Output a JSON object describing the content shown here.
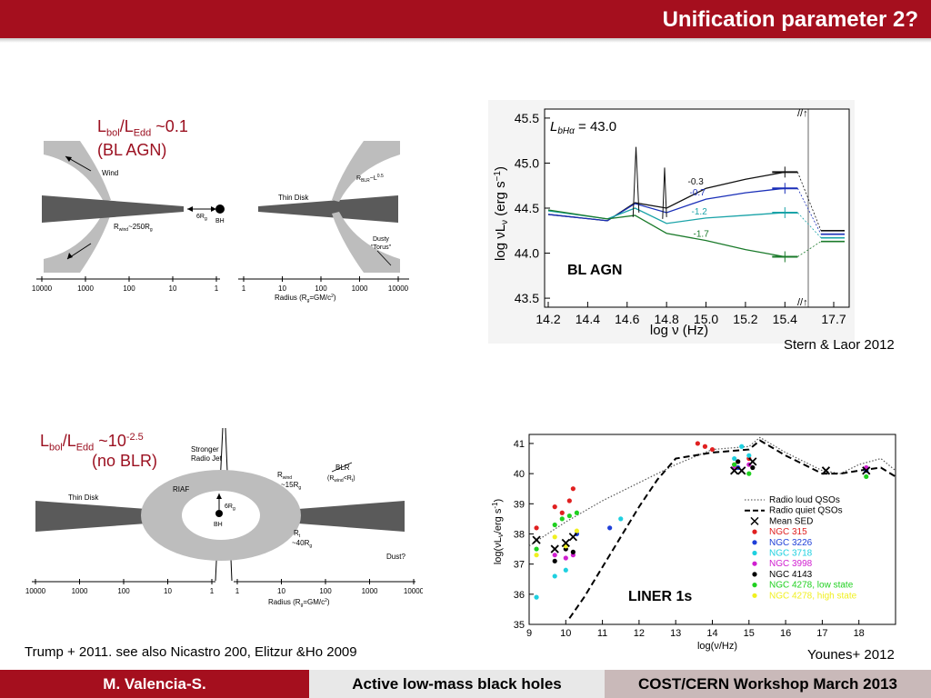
{
  "slide": {
    "title": "Unification parameter 2?"
  },
  "top_left": {
    "ratio_prefix": "L",
    "ratio_bol": "bol",
    "ratio_slash": "/L",
    "ratio_edd": "Edd",
    "ratio_value": " ~0.1",
    "class_label": "(BL AGN)",
    "diagram": {
      "wind": "Wind",
      "six_rg": "6R",
      "g_sub": "g",
      "bh": "BH",
      "rwind": "R",
      "rwind_sub": "wind",
      "rwind_val": "~250R",
      "rwind_val_sub": "g",
      "thin_disk": "Thin Disk",
      "rblr": "R",
      "rblr_sub": "BLR",
      "rblr_val": "~L",
      "rblr_exp": "0.5",
      "dusty": "Dusty",
      "torus": "\"Torus\"",
      "axis_label": "Radius (R",
      "axis_label_sub": "g",
      "axis_label_end": "=GM/c",
      "axis_label_exp": "2",
      "axis_label_close": ")",
      "left_ticks": [
        "10000",
        "1000",
        "100",
        "10",
        "1"
      ],
      "right_ticks": [
        "1",
        "10",
        "100",
        "1000",
        "10000"
      ]
    }
  },
  "bottom_left": {
    "ratio_prefix": "L",
    "ratio_bol": "bol",
    "ratio_slash": "/L",
    "ratio_edd": "Edd",
    "ratio_value": " ~10",
    "ratio_exp": "-2.5",
    "class_label": "(no BLR)",
    "diagram": {
      "thin_disk": "Thin Disk",
      "stronger": "Stronger",
      "radio_jet": "Radio Jet",
      "riaf": "RIAF",
      "six_rg": "6R",
      "g_sub": "g",
      "bh": "BH",
      "rwind": "R",
      "rwind_sub": "wind",
      "rwind_val": "~15R",
      "rwind_val_sub": "g",
      "blr": "BLR",
      "blr_cond": "(R",
      "blr_cond_sub": "wind",
      "blr_cond_end": "<R",
      "blr_cond_sub2": "t",
      "blr_close": ")",
      "rt": "R",
      "rt_sub": "t",
      "rt_val": "~40R",
      "rt_val_sub": "g",
      "dust": "Dust?",
      "axis_label": "Radius (R",
      "axis_label_sub": "g",
      "axis_label_end": "=GM/c",
      "axis_label_exp": "2",
      "axis_label_close": ")",
      "left_ticks": [
        "10000",
        "1000",
        "100",
        "10",
        "1"
      ],
      "right_ticks": [
        "1",
        "10",
        "100",
        "1000",
        "10000"
      ]
    }
  },
  "top_right": {
    "inner_label": "BL AGN",
    "annotation": "L",
    "annotation_sub": "bHα",
    "annotation_val": " = 43.0",
    "credit": "Stern & Laor 2012",
    "xlabel": "log ν (Hz)",
    "ylabel": "log νL",
    "ylabel_sub": "ν",
    "ylabel_unit": " (erg s",
    "ylabel_exp": "−1",
    "ylabel_close": ")",
    "break_top": "//↑",
    "break_bottom": "//↑",
    "colors": {
      "black": "#111111",
      "blue": "#1a2fb8",
      "teal": "#1aa3a8",
      "green": "#1a7a2a"
    }
  },
  "bottom_right": {
    "inner_label": "LINER 1s",
    "credit": "Younes+ 2012",
    "xlabel": "log(ν/Hz)",
    "ylabel": "log(νL",
    "ylabel_sub": "ν",
    "ylabel_unit": "/erg s",
    "ylabel_exp": "-1",
    "ylabel_close": ")"
  },
  "reference": "Trump + 2011. see also Nicastro 200, Elitzur &Ho 2009",
  "footer": {
    "author": "M. Valencia-S.",
    "topic": "Active low-mass black holes",
    "event": "COST/CERN Workshop March 2013",
    "colors": {
      "author_bg": "#a50f1e",
      "topic_bg": "#e8e8e8",
      "event_bg": "#c9b9b9"
    }
  },
  "chart_data": [
    {
      "type": "line",
      "title": "",
      "xlabel": "log ν (Hz)",
      "ylabel": "log νLν (erg s−1)",
      "xlim": [
        14.2,
        15.5
      ],
      "ylim": [
        43.4,
        45.6
      ],
      "x_ticks": [
        "14.2",
        "14.4",
        "14.6",
        "14.8",
        "15.0",
        "15.2",
        "15.4",
        "17.7"
      ],
      "y_ticks": [
        "43.5",
        "44.0",
        "44.5",
        "45.0",
        "45.5"
      ],
      "grid": false,
      "series": [
        {
          "name": "-0.3",
          "color": "#111111",
          "x": [
            14.2,
            14.5,
            14.64,
            14.8,
            15.0,
            15.2,
            15.4
          ],
          "y": [
            44.43,
            44.36,
            44.56,
            44.5,
            44.72,
            44.82,
            44.9
          ]
        },
        {
          "name": "-0.7",
          "color": "#1a2fb8",
          "x": [
            14.2,
            14.5,
            14.64,
            14.8,
            15.0,
            15.2,
            15.4
          ],
          "y": [
            44.43,
            44.36,
            44.55,
            44.45,
            44.6,
            44.67,
            44.72
          ]
        },
        {
          "name": "-1.2",
          "color": "#1aa3a8",
          "x": [
            14.2,
            14.5,
            14.64,
            14.8,
            15.0,
            15.2,
            15.4
          ],
          "y": [
            44.47,
            44.38,
            44.5,
            44.33,
            44.39,
            44.42,
            44.45
          ]
        },
        {
          "name": "-1.7",
          "color": "#1a7a2a",
          "x": [
            14.2,
            14.5,
            14.64,
            14.8,
            15.0,
            15.2,
            15.4
          ],
          "y": [
            44.48,
            44.38,
            44.42,
            44.22,
            44.14,
            44.04,
            43.96
          ]
        }
      ]
    },
    {
      "type": "scatter",
      "title": "",
      "xlabel": "log(ν/Hz)",
      "ylabel": "log(νLν/erg s-1)",
      "xlim": [
        9,
        19
      ],
      "ylim": [
        35,
        41.3
      ],
      "x_ticks": [
        "9",
        "10",
        "11",
        "12",
        "13",
        "14",
        "15",
        "16",
        "17",
        "18"
      ],
      "y_ticks": [
        "35",
        "36",
        "37",
        "38",
        "39",
        "40",
        "41"
      ],
      "legend_position": "right",
      "legend": [
        {
          "name": "Radio loud QSOs",
          "color": "#666666",
          "style": "dotted"
        },
        {
          "name": "Radio quiet QSOs",
          "color": "#000000",
          "style": "dashed"
        },
        {
          "name": "Mean SED",
          "color": "#000000",
          "style": "cross"
        },
        {
          "name": "NGC 315",
          "color": "#e02020",
          "style": "dot"
        },
        {
          "name": "NGC 3226",
          "color": "#1f3fd8",
          "style": "dot"
        },
        {
          "name": "NGC 3718",
          "color": "#1fd0e0",
          "style": "dot"
        },
        {
          "name": "NGC 3998",
          "color": "#d020d0",
          "style": "dot"
        },
        {
          "name": "NGC 4143",
          "color": "#000000",
          "style": "dot"
        },
        {
          "name": "NGC 4278, low state",
          "color": "#20d020",
          "style": "dot"
        },
        {
          "name": "NGC 4278, high state",
          "color": "#f0f020",
          "style": "dot"
        }
      ],
      "lines": [
        {
          "name": "Radio loud QSOs",
          "x": [
            9,
            10,
            11,
            12,
            13,
            14,
            15,
            15.3,
            16,
            17,
            17.5,
            18,
            18.6,
            19
          ],
          "y": [
            37.6,
            38.4,
            39.1,
            39.7,
            40.3,
            40.8,
            40.9,
            41.2,
            40.7,
            40.1,
            40.0,
            40.3,
            40.5,
            40.1
          ]
        },
        {
          "name": "Radio quiet QSOs",
          "x": [
            10.1,
            10.5,
            11,
            11.5,
            12,
            12.5,
            13,
            14,
            15,
            15.3,
            16,
            17,
            17.5,
            18,
            18.6,
            19
          ],
          "y": [
            35.2,
            35.9,
            36.9,
            37.9,
            38.9,
            39.8,
            40.5,
            40.7,
            40.8,
            41.1,
            40.6,
            40.0,
            40.0,
            40.1,
            40.2,
            39.9
          ]
        }
      ],
      "points": [
        {
          "series": "NGC 315",
          "x": [
            9.2,
            9.7,
            9.9,
            10.1,
            10.2,
            13.6,
            13.8,
            14.0,
            14.6,
            15.0
          ],
          "y": [
            38.2,
            38.9,
            38.7,
            39.1,
            39.5,
            41.0,
            40.9,
            40.8,
            40.3,
            40.5
          ]
        },
        {
          "series": "NGC 3226",
          "x": [
            10.3,
            11.2,
            14.7,
            18.2
          ],
          "y": [
            38.0,
            38.2,
            40.2,
            40.1
          ]
        },
        {
          "series": "NGC 3718",
          "x": [
            9.2,
            9.7,
            10.0,
            11.5,
            14.6,
            14.8,
            15.0
          ],
          "y": [
            35.9,
            36.6,
            36.8,
            38.5,
            40.5,
            40.9,
            40.6
          ]
        },
        {
          "series": "NGC 3998",
          "x": [
            9.7,
            10.0,
            10.2,
            14.6,
            15.0,
            18.2
          ],
          "y": [
            37.3,
            37.2,
            37.3,
            40.2,
            40.3,
            40.2
          ]
        },
        {
          "series": "NGC 4143",
          "x": [
            9.7,
            10.0,
            10.2,
            14.7,
            15.1
          ],
          "y": [
            37.1,
            37.5,
            37.4,
            40.4,
            40.2
          ]
        },
        {
          "series": "NGC 4278, low state",
          "x": [
            9.2,
            9.7,
            9.9,
            10.1,
            10.3,
            14.6,
            15.0,
            18.2
          ],
          "y": [
            37.5,
            38.3,
            38.5,
            38.6,
            38.7,
            40.3,
            40.0,
            39.9
          ]
        },
        {
          "series": "NGC 4278, high state",
          "x": [
            9.2,
            9.7,
            10.0,
            10.3
          ],
          "y": [
            37.3,
            37.9,
            37.6,
            38.1
          ]
        },
        {
          "series": "Mean SED",
          "x": [
            9.2,
            9.7,
            10.0,
            10.2,
            14.6,
            14.8,
            15.1,
            17.1,
            18.2
          ],
          "y": [
            37.8,
            37.5,
            37.7,
            37.9,
            40.1,
            40.1,
            40.4,
            40.1,
            40.1
          ]
        }
      ]
    }
  ]
}
